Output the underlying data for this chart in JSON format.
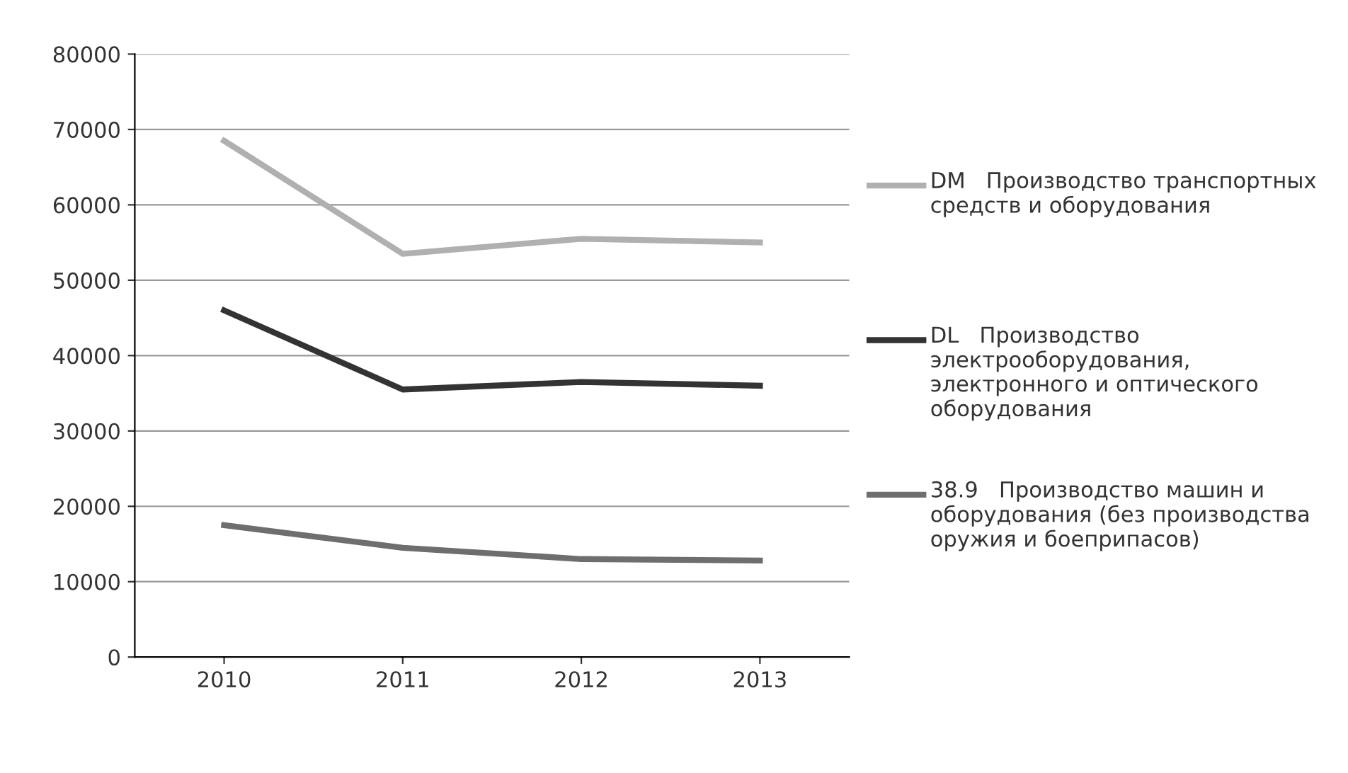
{
  "chart_data": {
    "type": "line",
    "categories": [
      "2010",
      "2011",
      "2012",
      "2013"
    ],
    "series": [
      {
        "name": "DM   Производство транспортных средств и оборудования",
        "color": "#b0b0b0",
        "values": [
          68500,
          53500,
          55500,
          55000
        ]
      },
      {
        "name": "DL   Производство электрооборудования, электронного и оптического оборудования",
        "color": "#333333",
        "values": [
          46000,
          35500,
          36500,
          36000
        ]
      },
      {
        "name": "38.9   Производство машин и оборудования (без производства оружия и боеприпасов)",
        "color": "#6e6e6e",
        "values": [
          17500,
          14500,
          13000,
          12800
        ]
      }
    ],
    "ylim": [
      0,
      80000
    ],
    "yticks": [
      0,
      10000,
      20000,
      30000,
      40000,
      50000,
      60000,
      70000,
      80000
    ],
    "grid": "y",
    "legend": "right",
    "marker": "none",
    "line_style": "solid"
  }
}
